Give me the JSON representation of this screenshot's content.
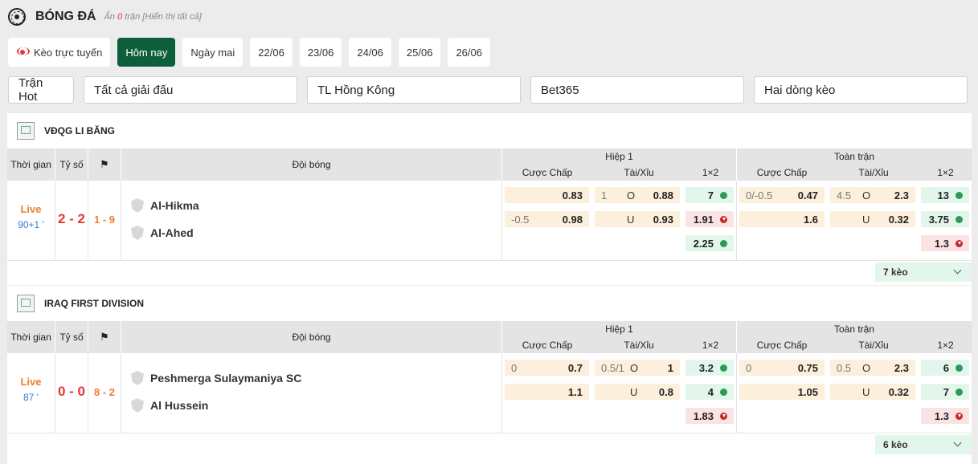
{
  "header": {
    "title": "BÓNG ĐÁ",
    "hint_prefix": "Ẩn",
    "hint_count": "0",
    "hint_suffix": "trận [Hiển thị tất cả]"
  },
  "tabs": [
    {
      "label": "Kèo trực tuyến",
      "icon": "live-broadcast-icon"
    },
    {
      "label": "Hôm nay",
      "active": true
    },
    {
      "label": "Ngày mai"
    },
    {
      "label": "22/06"
    },
    {
      "label": "23/06"
    },
    {
      "label": "24/06"
    },
    {
      "label": "25/06"
    },
    {
      "label": "26/06"
    }
  ],
  "filters": {
    "hot": "Trận Hot",
    "league": "Tất cả giải đấu",
    "odds_type": "TL Hồng Kông",
    "bookmaker": "Bet365",
    "rows": "Hai dòng kèo"
  },
  "columns": {
    "time": "Thời gian",
    "score": "Tỷ số",
    "team": "Đội bóng",
    "half": "Hiệp 1",
    "full": "Toàn trận",
    "handicap": "Cược Chấp",
    "ou": "Tài/Xỉu",
    "x12": "1×2"
  },
  "leagues": [
    {
      "name": "VĐQG LI BĂNG",
      "match": {
        "status": "Live",
        "minute": "90+1 '",
        "score": "2 - 2",
        "corners": "1 - 9",
        "home": "Al-Hikma",
        "away": "Al-Ahed",
        "h1": {
          "hdp": [
            {
              "line": "",
              "val": "0.83"
            },
            {
              "line": "-0.5",
              "val": "0.98"
            }
          ],
          "ou": [
            {
              "line": "1",
              "side": "O",
              "val": "0.88"
            },
            {
              "line": "",
              "side": "U",
              "val": "0.93"
            }
          ],
          "x12": [
            {
              "val": "7",
              "dir": "up"
            },
            {
              "val": "1.91",
              "dir": "down"
            },
            {
              "val": "2.25",
              "dir": "up"
            }
          ]
        },
        "ft": {
          "hdp": [
            {
              "line": "0/-0.5",
              "val": "0.47"
            },
            {
              "line": "",
              "val": "1.6"
            }
          ],
          "ou": [
            {
              "line": "4.5",
              "side": "O",
              "val": "2.3"
            },
            {
              "line": "",
              "side": "U",
              "val": "0.32"
            }
          ],
          "x12": [
            {
              "val": "13",
              "dir": "up"
            },
            {
              "val": "3.75",
              "dir": "up"
            },
            {
              "val": "1.3",
              "dir": "down"
            }
          ]
        },
        "more": "7 kèo"
      }
    },
    {
      "name": "IRAQ FIRST DIVISION",
      "match": {
        "status": "Live",
        "minute": "87 '",
        "score": "0 - 0",
        "corners": "8 - 2",
        "home": "Peshmerga Sulaymaniya SC",
        "away": "Al Hussein",
        "h1": {
          "hdp": [
            {
              "line": "0",
              "val": "0.7"
            },
            {
              "line": "",
              "val": "1.1"
            }
          ],
          "ou": [
            {
              "line": "0.5/1",
              "side": "O",
              "val": "1"
            },
            {
              "line": "",
              "side": "U",
              "val": "0.8"
            }
          ],
          "x12": [
            {
              "val": "3.2",
              "dir": "up"
            },
            {
              "val": "4",
              "dir": "up"
            },
            {
              "val": "1.83",
              "dir": "down"
            }
          ]
        },
        "ft": {
          "hdp": [
            {
              "line": "0",
              "val": "0.75"
            },
            {
              "line": "",
              "val": "1.05"
            }
          ],
          "ou": [
            {
              "line": "0.5",
              "side": "O",
              "val": "2.3"
            },
            {
              "line": "",
              "side": "U",
              "val": "0.32"
            }
          ],
          "x12": [
            {
              "val": "6",
              "dir": "up"
            },
            {
              "val": "7",
              "dir": "up"
            },
            {
              "val": "1.3",
              "dir": "down"
            }
          ]
        },
        "more": "6 kèo"
      }
    }
  ]
}
